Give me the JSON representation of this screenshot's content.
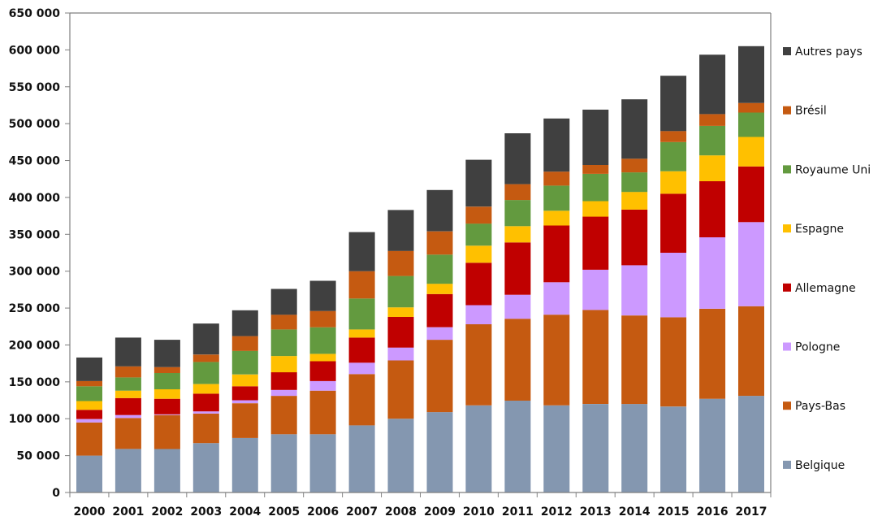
{
  "chart_data": {
    "type": "bar",
    "stacked": true,
    "title": "",
    "xlabel": "",
    "ylabel": "",
    "ylim": [
      0,
      650000
    ],
    "yticks": [
      0,
      50000,
      100000,
      150000,
      200000,
      250000,
      300000,
      350000,
      400000,
      450000,
      500000,
      550000,
      600000,
      650000
    ],
    "ytick_labels": [
      "0",
      "50 000",
      "100 000",
      "150 000",
      "200 000",
      "250 000",
      "300 000",
      "350 000",
      "400 000",
      "450 000",
      "500 000",
      "550 000",
      "600 000",
      "650 000"
    ],
    "grid": false,
    "legend_position": "right",
    "categories": [
      "2000",
      "2001",
      "2002",
      "2003",
      "2004",
      "2005",
      "2006",
      "2007",
      "2008",
      "2009",
      "2010",
      "2011",
      "2012",
      "2013",
      "2014",
      "2015",
      "2016",
      "2017"
    ],
    "series": [
      {
        "name": "Belgique",
        "color": "#8497b0",
        "values": [
          50000,
          59000,
          59000,
          67000,
          74000,
          79000,
          79000,
          91000,
          100000,
          109000,
          118000,
          124500,
          118000,
          120000,
          120000,
          116500,
          127000,
          131000
        ]
      },
      {
        "name": "Pays-Bas",
        "color": "#c55a11",
        "values": [
          45000,
          42000,
          46000,
          40000,
          47000,
          52000,
          59000,
          69500,
          79000,
          98000,
          110000,
          111000,
          123000,
          127500,
          120000,
          121000,
          122000,
          121500
        ]
      },
      {
        "name": "Pologne",
        "color": "#cc99ff",
        "values": [
          4500,
          4000,
          1000,
          3000,
          4000,
          8000,
          13000,
          15500,
          17500,
          17000,
          26000,
          32500,
          44000,
          54500,
          68000,
          87500,
          97000,
          114000
        ]
      },
      {
        "name": "Allemagne",
        "color": "#c00000",
        "values": [
          12500,
          23000,
          21000,
          24000,
          19000,
          24000,
          27000,
          34000,
          41500,
          45000,
          57500,
          71000,
          77000,
          72000,
          75500,
          80000,
          76000,
          75500
        ]
      },
      {
        "name": "Espagne",
        "color": "#ffc000",
        "values": [
          12000,
          10000,
          13000,
          13000,
          16000,
          22000,
          10000,
          11000,
          13000,
          14000,
          23000,
          22000,
          20000,
          21000,
          24000,
          30500,
          35000,
          40000
        ]
      },
      {
        "name": "Royaume Uni",
        "color": "#639a3f",
        "values": [
          20000,
          18000,
          22000,
          30000,
          32000,
          36000,
          36000,
          42000,
          42500,
          39500,
          30000,
          35500,
          34000,
          37000,
          26500,
          39500,
          40000,
          33000
        ]
      },
      {
        "name": "Brésil",
        "color": "#c55a11",
        "values": [
          7000,
          15000,
          8000,
          10000,
          20000,
          20000,
          22000,
          37000,
          34000,
          31500,
          23000,
          21500,
          19000,
          12000,
          18500,
          15000,
          16000,
          13000
        ]
      },
      {
        "name": "Autres pays",
        "color": "#404040",
        "values": [
          32000,
          39000,
          37000,
          42000,
          35000,
          35000,
          41000,
          53000,
          55500,
          56000,
          63500,
          69000,
          72000,
          75000,
          80500,
          75000,
          80500,
          77000
        ]
      }
    ],
    "legend_order": [
      "Autres pays",
      "Brésil",
      "Royaume Uni",
      "Espagne",
      "Allemagne",
      "Pologne",
      "Pays-Bas",
      "Belgique"
    ]
  }
}
